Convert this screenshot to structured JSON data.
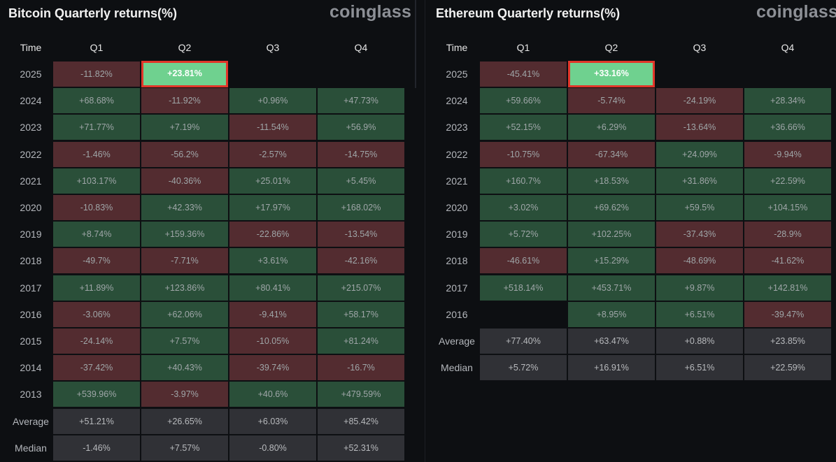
{
  "panels": [
    {
      "id": "btc",
      "title": "Bitcoin Quarterly returns(%)",
      "logo": "coinglass",
      "headers": [
        "Time",
        "Q1",
        "Q2",
        "Q3",
        "Q4"
      ],
      "rows": [
        {
          "label": "2025",
          "values": [
            "-11.82%",
            "+23.81%",
            "",
            ""
          ]
        },
        {
          "label": "2024",
          "values": [
            "+68.68%",
            "-11.92%",
            "+0.96%",
            "+47.73%"
          ]
        },
        {
          "label": "2023",
          "values": [
            "+71.77%",
            "+7.19%",
            "-11.54%",
            "+56.9%"
          ]
        },
        {
          "label": "2022",
          "values": [
            "-1.46%",
            "-56.2%",
            "-2.57%",
            "-14.75%"
          ]
        },
        {
          "label": "2021",
          "values": [
            "+103.17%",
            "-40.36%",
            "+25.01%",
            "+5.45%"
          ]
        },
        {
          "label": "2020",
          "values": [
            "-10.83%",
            "+42.33%",
            "+17.97%",
            "+168.02%"
          ]
        },
        {
          "label": "2019",
          "values": [
            "+8.74%",
            "+159.36%",
            "-22.86%",
            "-13.54%"
          ]
        },
        {
          "label": "2018",
          "values": [
            "-49.7%",
            "-7.71%",
            "+3.61%",
            "-42.16%"
          ]
        },
        {
          "label": "2017",
          "values": [
            "+11.89%",
            "+123.86%",
            "+80.41%",
            "+215.07%"
          ]
        },
        {
          "label": "2016",
          "values": [
            "-3.06%",
            "+62.06%",
            "-9.41%",
            "+58.17%"
          ]
        },
        {
          "label": "2015",
          "values": [
            "-24.14%",
            "+7.57%",
            "-10.05%",
            "+81.24%"
          ]
        },
        {
          "label": "2014",
          "values": [
            "-37.42%",
            "+40.43%",
            "-39.74%",
            "-16.7%"
          ]
        },
        {
          "label": "2013",
          "values": [
            "+539.96%",
            "-3.97%",
            "+40.6%",
            "+479.59%"
          ]
        }
      ],
      "stats": [
        {
          "label": "Average",
          "values": [
            "+51.21%",
            "+26.65%",
            "+6.03%",
            "+85.42%"
          ]
        },
        {
          "label": "Median",
          "values": [
            "-1.46%",
            "+7.57%",
            "-0.80%",
            "+52.31%"
          ]
        }
      ],
      "highlight": {
        "row": 0,
        "col": 1
      }
    },
    {
      "id": "eth",
      "title": "Ethereum Quarterly returns(%)",
      "logo": "coinglass",
      "headers": [
        "Time",
        "Q1",
        "Q2",
        "Q3",
        "Q4"
      ],
      "rows": [
        {
          "label": "2025",
          "values": [
            "-45.41%",
            "+33.16%",
            "",
            ""
          ]
        },
        {
          "label": "2024",
          "values": [
            "+59.66%",
            "-5.74%",
            "-24.19%",
            "+28.34%"
          ]
        },
        {
          "label": "2023",
          "values": [
            "+52.15%",
            "+6.29%",
            "-13.64%",
            "+36.66%"
          ]
        },
        {
          "label": "2022",
          "values": [
            "-10.75%",
            "-67.34%",
            "+24.09%",
            "-9.94%"
          ]
        },
        {
          "label": "2021",
          "values": [
            "+160.7%",
            "+18.53%",
            "+31.86%",
            "+22.59%"
          ]
        },
        {
          "label": "2020",
          "values": [
            "+3.02%",
            "+69.62%",
            "+59.5%",
            "+104.15%"
          ]
        },
        {
          "label": "2019",
          "values": [
            "+5.72%",
            "+102.25%",
            "-37.43%",
            "-28.9%"
          ]
        },
        {
          "label": "2018",
          "values": [
            "-46.61%",
            "+15.29%",
            "-48.69%",
            "-41.62%"
          ]
        },
        {
          "label": "2017",
          "values": [
            "+518.14%",
            "+453.71%",
            "+9.87%",
            "+142.81%"
          ]
        },
        {
          "label": "2016",
          "values": [
            "",
            "+8.95%",
            "+6.51%",
            "-39.47%"
          ]
        }
      ],
      "stats": [
        {
          "label": "Average",
          "values": [
            "+77.40%",
            "+63.47%",
            "+0.88%",
            "+23.85%"
          ]
        },
        {
          "label": "Median",
          "values": [
            "+5.72%",
            "+16.91%",
            "+6.51%",
            "+22.59%"
          ]
        }
      ],
      "highlight": {
        "row": 0,
        "col": 1
      }
    }
  ],
  "colors": {
    "positive": "#2a4f39",
    "negative": "#532c30",
    "stat": "#303136",
    "highlight": "#6fd18f",
    "highlight_border": "#e2362a"
  },
  "chart_data": [
    {
      "type": "table",
      "title": "Bitcoin Quarterly returns(%)",
      "columns": [
        "Time",
        "Q1",
        "Q2",
        "Q3",
        "Q4"
      ],
      "rows": [
        [
          "2025",
          -11.82,
          23.81,
          null,
          null
        ],
        [
          "2024",
          68.68,
          -11.92,
          0.96,
          47.73
        ],
        [
          "2023",
          71.77,
          7.19,
          -11.54,
          56.9
        ],
        [
          "2022",
          -1.46,
          -56.2,
          -2.57,
          -14.75
        ],
        [
          "2021",
          103.17,
          -40.36,
          25.01,
          5.45
        ],
        [
          "2020",
          -10.83,
          42.33,
          17.97,
          168.02
        ],
        [
          "2019",
          8.74,
          159.36,
          -22.86,
          -13.54
        ],
        [
          "2018",
          -49.7,
          -7.71,
          3.61,
          -42.16
        ],
        [
          "2017",
          11.89,
          123.86,
          80.41,
          215.07
        ],
        [
          "2016",
          -3.06,
          62.06,
          -9.41,
          58.17
        ],
        [
          "2015",
          -24.14,
          7.57,
          -10.05,
          81.24
        ],
        [
          "2014",
          -37.42,
          40.43,
          -39.74,
          -16.7
        ],
        [
          "2013",
          539.96,
          -3.97,
          40.6,
          479.59
        ],
        [
          "Average",
          51.21,
          26.65,
          6.03,
          85.42
        ],
        [
          "Median",
          -1.46,
          7.57,
          -0.8,
          52.31
        ]
      ]
    },
    {
      "type": "table",
      "title": "Ethereum Quarterly returns(%)",
      "columns": [
        "Time",
        "Q1",
        "Q2",
        "Q3",
        "Q4"
      ],
      "rows": [
        [
          "2025",
          -45.41,
          33.16,
          null,
          null
        ],
        [
          "2024",
          59.66,
          -5.74,
          -24.19,
          28.34
        ],
        [
          "2023",
          52.15,
          6.29,
          -13.64,
          36.66
        ],
        [
          "2022",
          -10.75,
          -67.34,
          24.09,
          -9.94
        ],
        [
          "2021",
          160.7,
          18.53,
          31.86,
          22.59
        ],
        [
          "2020",
          3.02,
          69.62,
          59.5,
          104.15
        ],
        [
          "2019",
          5.72,
          102.25,
          -37.43,
          -28.9
        ],
        [
          "2018",
          -46.61,
          15.29,
          -48.69,
          -41.62
        ],
        [
          "2017",
          518.14,
          453.71,
          9.87,
          142.81
        ],
        [
          "2016",
          null,
          8.95,
          6.51,
          -39.47
        ],
        [
          "Average",
          77.4,
          63.47,
          0.88,
          23.85
        ],
        [
          "Median",
          5.72,
          16.91,
          6.51,
          22.59
        ]
      ]
    }
  ]
}
